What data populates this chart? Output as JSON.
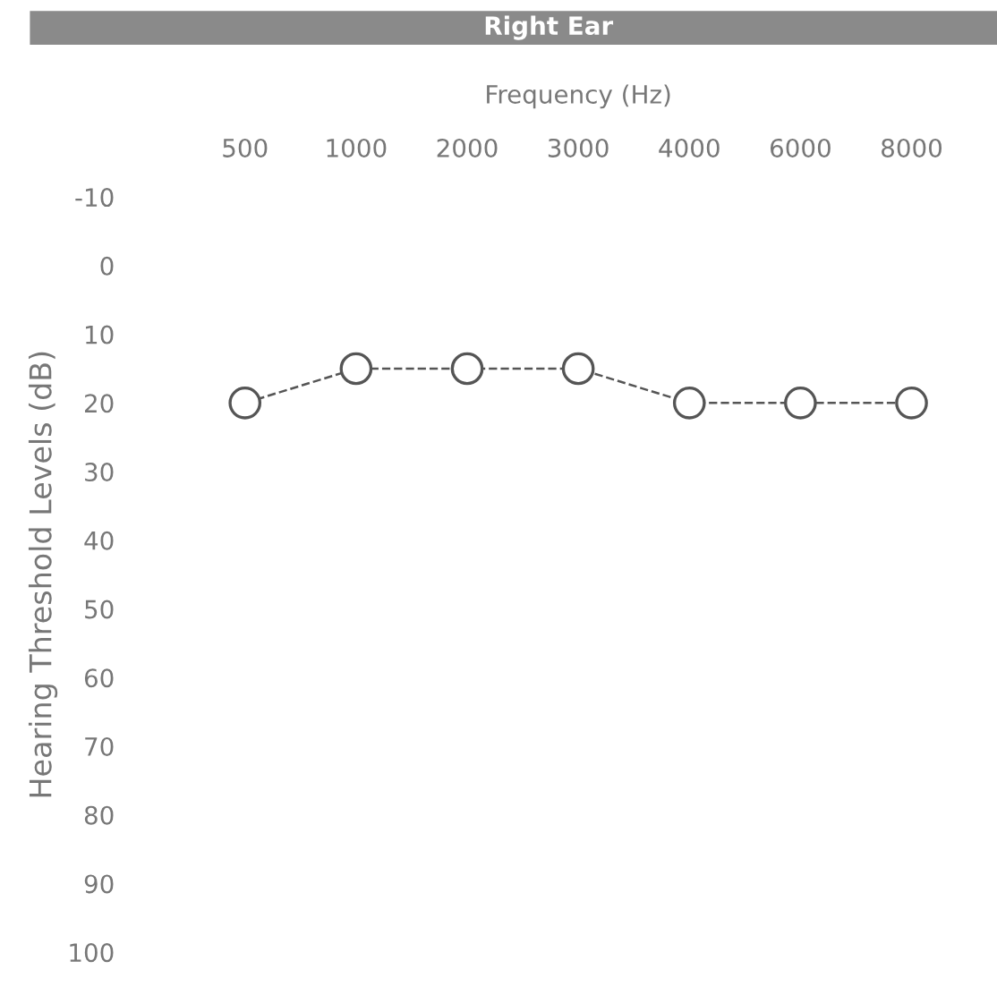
{
  "chart_data": {
    "type": "line",
    "title": "Right Ear",
    "xlabel": "Frequency (Hz)",
    "ylabel": "Hearing Threshold Levels (dB)",
    "categories": [
      "500",
      "1000",
      "2000",
      "3000",
      "4000",
      "6000",
      "8000"
    ],
    "series": [
      {
        "color": "#555555",
        "values": [
          20,
          15,
          15,
          15,
          20,
          20,
          20
        ]
      }
    ],
    "ylim": [
      100,
      -10
    ],
    "yticks": [
      -10,
      0,
      10,
      20,
      30,
      40,
      50,
      60,
      70,
      80,
      90,
      100
    ],
    "marker": "circle",
    "line_style": "dashed",
    "grid": false
  }
}
